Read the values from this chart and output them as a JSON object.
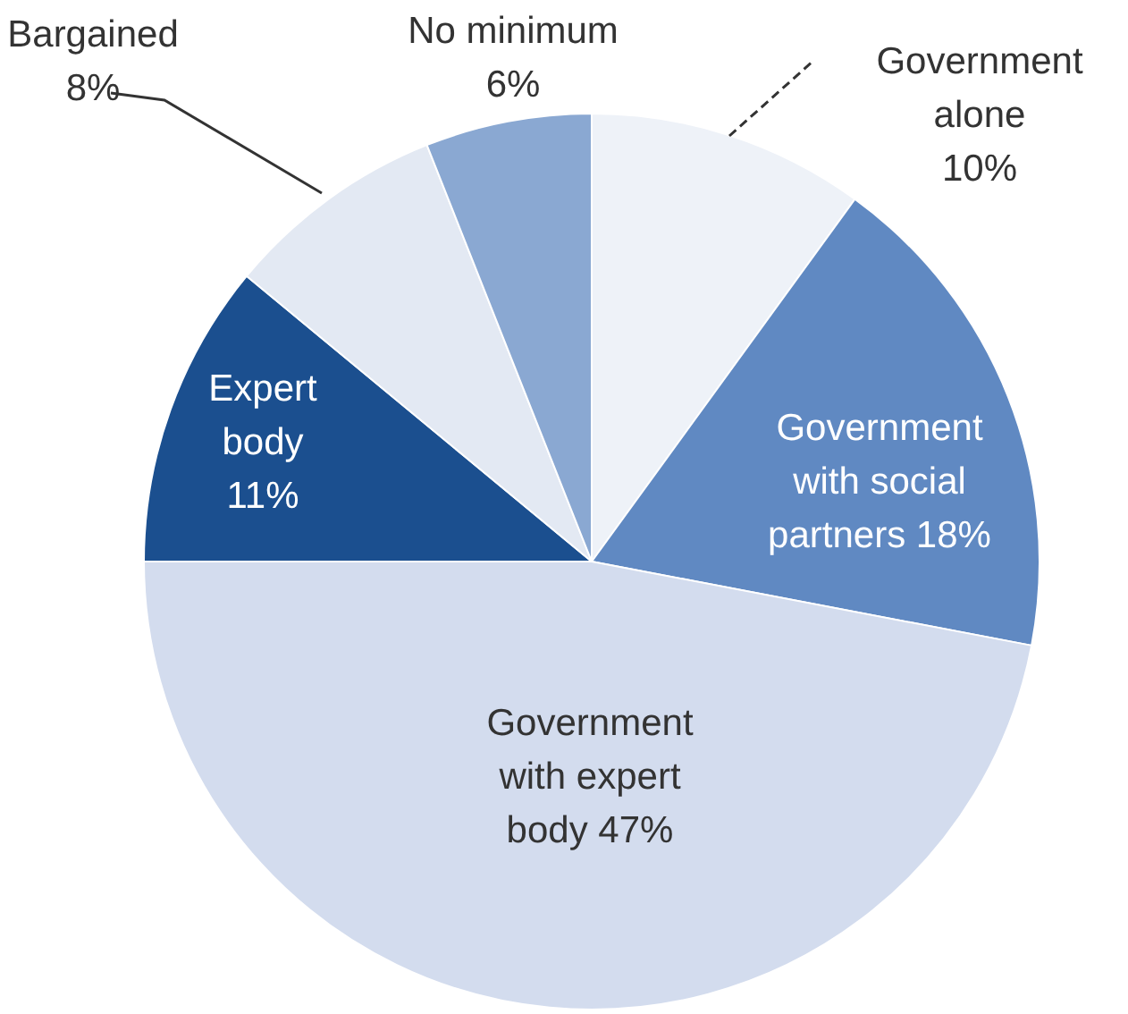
{
  "chart_data": {
    "type": "pie",
    "categories": [
      "Government alone",
      "Government with social partners",
      "Government with expert body",
      "Expert body",
      "Bargained",
      "No minimum"
    ],
    "values": [
      10,
      18,
      47,
      11,
      8,
      6
    ],
    "value_labels": [
      "10%",
      "18%",
      "47%",
      "11%",
      "8%",
      "6%"
    ],
    "colors": [
      "#eef2f8",
      "#6089c2",
      "#d3dcee",
      "#1b4f8f",
      "#e3e9f3",
      "#8aa8d2"
    ],
    "legend": false
  }
}
